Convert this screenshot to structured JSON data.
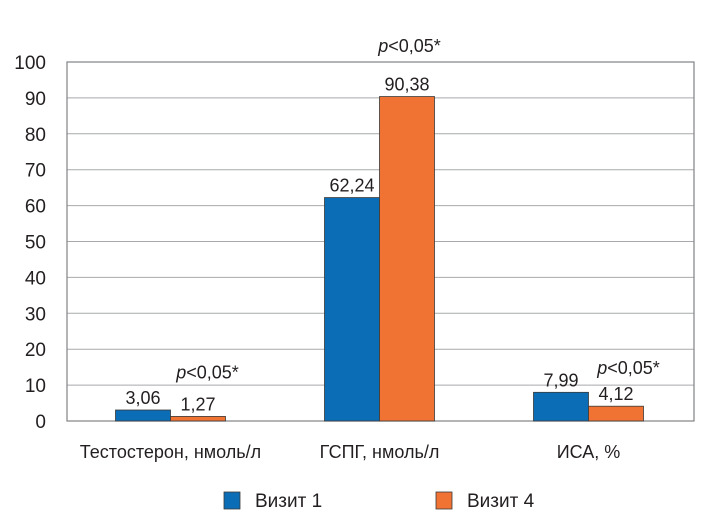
{
  "chart_data": {
    "type": "bar",
    "title": "",
    "xlabel": "",
    "ylabel": "",
    "ylim": [
      0,
      100
    ],
    "yticks": [
      0,
      10,
      20,
      30,
      40,
      50,
      60,
      70,
      80,
      90,
      100
    ],
    "grid": true,
    "legend_position": "bottom",
    "categories": [
      "Тестостерон, нмоль/л",
      "ГСПГ, нмоль/л",
      "ИСА, %"
    ],
    "series": [
      {
        "name": "Визит 1",
        "color": "#0b6db5",
        "values": [
          3.06,
          62.24,
          7.99
        ],
        "labels": [
          "3,06",
          "62,24",
          "7,99"
        ]
      },
      {
        "name": "Визит 4",
        "color": "#f07333",
        "values": [
          1.27,
          90.38,
          4.12
        ],
        "labels": [
          "1,27",
          "90,38",
          "4,12"
        ]
      }
    ],
    "annotations": [
      {
        "category": "Тестостерон, нмоль/л",
        "p": "p",
        "text": "<0,05*"
      },
      {
        "category": "ГСПГ, нмоль/л",
        "p": "p",
        "text": "<0,05*"
      },
      {
        "category": "ИСА, %",
        "p": "p",
        "text": "<0,05*"
      }
    ]
  }
}
